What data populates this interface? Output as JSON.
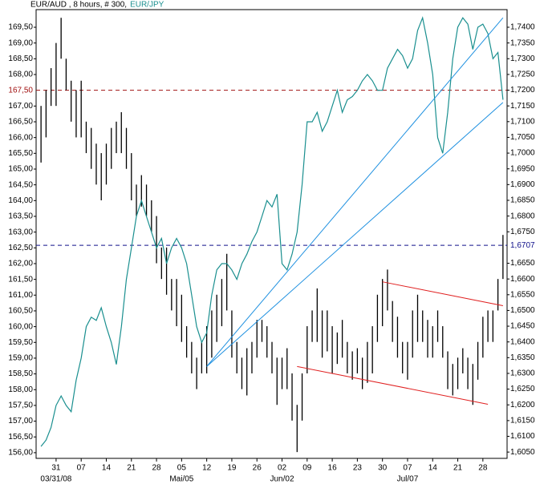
{
  "chart_data": {
    "type": "hilo",
    "title": "EUR/AUD , 8 hours, # 300,",
    "x": [
      "2008-03-26",
      "2008-03-27",
      "2008-03-28",
      "2008-03-31",
      "2008-04-01",
      "2008-04-02",
      "2008-04-03",
      "2008-04-04",
      "2008-04-07",
      "2008-04-08",
      "2008-04-09",
      "2008-04-10",
      "2008-04-11",
      "2008-04-14",
      "2008-04-15",
      "2008-04-16",
      "2008-04-17",
      "2008-04-18",
      "2008-04-21",
      "2008-04-22",
      "2008-04-23",
      "2008-04-24",
      "2008-04-25",
      "2008-04-28",
      "2008-04-29",
      "2008-04-30",
      "2008-05-01",
      "2008-05-02",
      "2008-05-05",
      "2008-05-06",
      "2008-05-07",
      "2008-05-08",
      "2008-05-09",
      "2008-05-12",
      "2008-05-13",
      "2008-05-14",
      "2008-05-15",
      "2008-05-16",
      "2008-05-19",
      "2008-05-20",
      "2008-05-21",
      "2008-05-22",
      "2008-05-23",
      "2008-05-26",
      "2008-05-27",
      "2008-05-28",
      "2008-05-29",
      "2008-05-30",
      "2008-06-02",
      "2008-06-03",
      "2008-06-04",
      "2008-06-05",
      "2008-06-06",
      "2008-06-09",
      "2008-06-10",
      "2008-06-11",
      "2008-06-12",
      "2008-06-13",
      "2008-06-16",
      "2008-06-17",
      "2008-06-18",
      "2008-06-19",
      "2008-06-20",
      "2008-06-23",
      "2008-06-24",
      "2008-06-25",
      "2008-06-26",
      "2008-06-27",
      "2008-06-30",
      "2008-07-01",
      "2008-07-02",
      "2008-07-03",
      "2008-07-04",
      "2008-07-07",
      "2008-07-08",
      "2008-07-09",
      "2008-07-10",
      "2008-07-11",
      "2008-07-14",
      "2008-07-15",
      "2008-07-16",
      "2008-07-17",
      "2008-07-18",
      "2008-07-21",
      "2008-07-22",
      "2008-07-23",
      "2008-07-24",
      "2008-07-25",
      "2008-07-28",
      "2008-07-29",
      "2008-07-30",
      "2008-07-31",
      "2008-08-01"
    ],
    "bars": {
      "axis": "y2",
      "color": "#000000",
      "high": [
        1.715,
        1.72,
        1.727,
        1.735,
        1.743,
        1.73,
        1.723,
        1.72,
        1.723,
        1.71,
        1.708,
        1.703,
        1.7,
        1.703,
        1.708,
        1.71,
        1.713,
        1.708,
        1.7,
        1.69,
        1.693,
        1.69,
        1.685,
        1.68,
        1.67,
        1.67,
        1.66,
        1.66,
        1.655,
        1.645,
        1.64,
        1.635,
        1.64,
        1.645,
        1.65,
        1.655,
        1.66,
        1.668,
        1.65,
        1.64,
        1.635,
        1.638,
        1.64,
        1.647,
        1.647,
        1.645,
        1.64,
        1.635,
        1.635,
        1.638,
        1.63,
        1.62,
        1.63,
        1.645,
        1.65,
        1.657,
        1.65,
        1.65,
        1.645,
        1.643,
        1.647,
        1.64,
        1.637,
        1.638,
        1.635,
        1.64,
        1.645,
        1.655,
        1.66,
        1.663,
        1.653,
        1.648,
        1.64,
        1.64,
        1.65,
        1.655,
        1.65,
        1.647,
        1.645,
        1.65,
        1.645,
        1.637,
        1.633,
        1.635,
        1.638,
        1.635,
        1.633,
        1.64,
        1.648,
        1.65,
        1.65,
        1.66,
        1.674
      ],
      "low": [
        1.697,
        1.705,
        1.715,
        1.715,
        1.73,
        1.72,
        1.71,
        1.705,
        1.705,
        1.7,
        1.695,
        1.69,
        1.685,
        1.69,
        1.695,
        1.7,
        1.7,
        1.695,
        1.685,
        1.68,
        1.683,
        1.68,
        1.675,
        1.665,
        1.66,
        1.655,
        1.65,
        1.645,
        1.64,
        1.635,
        1.63,
        1.625,
        1.63,
        1.63,
        1.635,
        1.64,
        1.645,
        1.65,
        1.635,
        1.63,
        1.625,
        1.623,
        1.63,
        1.635,
        1.64,
        1.635,
        1.63,
        1.62,
        1.625,
        1.625,
        1.615,
        1.605,
        1.615,
        1.63,
        1.64,
        1.64,
        1.635,
        1.637,
        1.63,
        1.633,
        1.635,
        1.63,
        1.628,
        1.63,
        1.625,
        1.627,
        1.63,
        1.64,
        1.645,
        1.65,
        1.64,
        1.635,
        1.63,
        1.628,
        1.635,
        1.64,
        1.64,
        1.635,
        1.635,
        1.64,
        1.635,
        1.625,
        1.623,
        1.625,
        1.63,
        1.625,
        1.62,
        1.628,
        1.635,
        1.64,
        1.64,
        1.65,
        1.66
      ]
    },
    "series": [
      {
        "name": "EUR/JPY",
        "color": "#1a8f8f",
        "axis": "y",
        "values": [
          156.2,
          156.4,
          156.8,
          157.5,
          157.8,
          157.5,
          157.3,
          158.3,
          159,
          160,
          160.3,
          160.2,
          160.6,
          160,
          159.5,
          158.8,
          160,
          161.5,
          162.5,
          163.5,
          164,
          163.5,
          163,
          162.5,
          162.8,
          162,
          162.5,
          162.8,
          162.5,
          162,
          161,
          160,
          159.5,
          159.8,
          161,
          161.8,
          162,
          162,
          161.8,
          161.5,
          162,
          162.3,
          162.7,
          163,
          163.5,
          164,
          163.8,
          164.2,
          162,
          161.8,
          162.3,
          163,
          164.5,
          166.5,
          166.5,
          166.8,
          166.2,
          166.5,
          167,
          167.5,
          166.8,
          167.2,
          167.3,
          167.5,
          167.8,
          168,
          167.8,
          167.5,
          167.5,
          168.2,
          168.5,
          168.8,
          168.6,
          168.2,
          168.5,
          169.4,
          169.8,
          169,
          168,
          166,
          165.5,
          166.8,
          168.5,
          169.5,
          169.8,
          169.6,
          168.8,
          169.5,
          169.6,
          169.3,
          168.5,
          168.7,
          167.2
        ]
      }
    ],
    "ylim": [
      155.82,
      170.06
    ],
    "y2lim": [
      1.603,
      1.7456
    ],
    "yticks": [
      {
        "value": 156,
        "label": "156,00"
      },
      {
        "value": 156.5,
        "label": "156,50"
      },
      {
        "value": 157,
        "label": "157,00"
      },
      {
        "value": 157.5,
        "label": "157,50"
      },
      {
        "value": 158,
        "label": "158,00"
      },
      {
        "value": 158.5,
        "label": "158,50"
      },
      {
        "value": 159,
        "label": "159,00"
      },
      {
        "value": 159.5,
        "label": "159,50"
      },
      {
        "value": 160,
        "label": "160,00"
      },
      {
        "value": 160.5,
        "label": "160,50"
      },
      {
        "value": 161,
        "label": "161,00"
      },
      {
        "value": 161.5,
        "label": "161,50"
      },
      {
        "value": 162,
        "label": "162,00"
      },
      {
        "value": 162.5,
        "label": "162,50"
      },
      {
        "value": 163,
        "label": "163,00"
      },
      {
        "value": 163.5,
        "label": "163,50"
      },
      {
        "value": 164,
        "label": "164,00"
      },
      {
        "value": 164.5,
        "label": "164,50"
      },
      {
        "value": 165,
        "label": "165,00"
      },
      {
        "value": 165.5,
        "label": "165,50"
      },
      {
        "value": 166,
        "label": "166,00"
      },
      {
        "value": 166.5,
        "label": "166,50"
      },
      {
        "value": 167,
        "label": "167,00"
      },
      {
        "value": 168,
        "label": "168,00"
      },
      {
        "value": 168.5,
        "label": "168,50"
      },
      {
        "value": 169,
        "label": "169,00"
      },
      {
        "value": 169.5,
        "label": "169,50"
      }
    ],
    "y2ticks": [
      {
        "value": 1.605,
        "label": "1,6050"
      },
      {
        "value": 1.61,
        "label": "1,6100"
      },
      {
        "value": 1.615,
        "label": "1,6150"
      },
      {
        "value": 1.62,
        "label": "1,6200"
      },
      {
        "value": 1.625,
        "label": "1,6250"
      },
      {
        "value": 1.63,
        "label": "1,6300"
      },
      {
        "value": 1.635,
        "label": "1,6350"
      },
      {
        "value": 1.64,
        "label": "1,6400"
      },
      {
        "value": 1.645,
        "label": "1,6450"
      },
      {
        "value": 1.65,
        "label": "1,6500"
      },
      {
        "value": 1.655,
        "label": "1,6550"
      },
      {
        "value": 1.66,
        "label": "1,6600"
      },
      {
        "value": 1.665,
        "label": "1,6650"
      },
      {
        "value": 1.675,
        "label": "1,6750"
      },
      {
        "value": 1.68,
        "label": "1,6800"
      },
      {
        "value": 1.685,
        "label": "1,6850"
      },
      {
        "value": 1.69,
        "label": "1,6900"
      },
      {
        "value": 1.695,
        "label": "1,6950"
      },
      {
        "value": 1.7,
        "label": "1,7000"
      },
      {
        "value": 1.705,
        "label": "1,7050"
      },
      {
        "value": 1.71,
        "label": "1,7100"
      },
      {
        "value": 1.715,
        "label": "1,7150"
      },
      {
        "value": 1.72,
        "label": "1,7200"
      },
      {
        "value": 1.725,
        "label": "1,7250"
      },
      {
        "value": 1.73,
        "label": "1,7300"
      },
      {
        "value": 1.735,
        "label": "1,7350"
      },
      {
        "value": 1.74,
        "label": "1,7400"
      }
    ],
    "hlines": [
      {
        "axis": "y",
        "value": 167.5,
        "label": "167,50",
        "color": "#a01010"
      },
      {
        "axis": "y2",
        "value": 1.6707,
        "label": "1,6707",
        "color": "#10108a"
      }
    ],
    "xticks": [
      {
        "value": "2008-03-31",
        "label": "31"
      },
      {
        "value": "2008-04-07",
        "label": "07"
      },
      {
        "value": "2008-04-14",
        "label": "14"
      },
      {
        "value": "2008-04-21",
        "label": "21"
      },
      {
        "value": "2008-04-28",
        "label": "28"
      },
      {
        "value": "2008-05-05",
        "label": "05"
      },
      {
        "value": "2008-05-12",
        "label": "12"
      },
      {
        "value": "2008-05-19",
        "label": "19"
      },
      {
        "value": "2008-05-26",
        "label": "26"
      },
      {
        "value": "2008-06-02",
        "label": "02"
      },
      {
        "value": "2008-06-09",
        "label": "09"
      },
      {
        "value": "2008-06-16",
        "label": "16"
      },
      {
        "value": "2008-06-23",
        "label": "23"
      },
      {
        "value": "2008-06-30",
        "label": "30"
      },
      {
        "value": "2008-07-07",
        "label": "07"
      },
      {
        "value": "2008-07-14",
        "label": "14"
      },
      {
        "value": "2008-07-21",
        "label": "21"
      },
      {
        "value": "2008-07-28",
        "label": "28"
      }
    ],
    "xticks_months": [
      {
        "value": "2008-03-31",
        "label": "03/31/08"
      },
      {
        "value": "2008-05-05",
        "label": "Mai/05"
      },
      {
        "value": "2008-06-02",
        "label": "Jun/02"
      },
      {
        "value": "2008-07-07",
        "label": "Jul/07"
      }
    ],
    "trendlines": [
      {
        "axis": "y2",
        "color": "#1e90e0",
        "x": [
          "2008-05-12",
          "2008-08-01"
        ],
        "values": [
          1.6322,
          1.743
        ]
      },
      {
        "axis": "y2",
        "color": "#1e90e0",
        "x": [
          "2008-05-12",
          "2008-08-01"
        ],
        "values": [
          1.6322,
          1.7161
        ]
      },
      {
        "axis": "y2",
        "color": "#e02020",
        "x": [
          "2008-06-30",
          "2008-08-01"
        ],
        "values": [
          1.6591,
          1.6515
        ]
      },
      {
        "axis": "y2",
        "color": "#e02020",
        "x": [
          "2008-06-05",
          "2008-07-29"
        ],
        "values": [
          1.6322,
          1.6202
        ]
      }
    ]
  }
}
